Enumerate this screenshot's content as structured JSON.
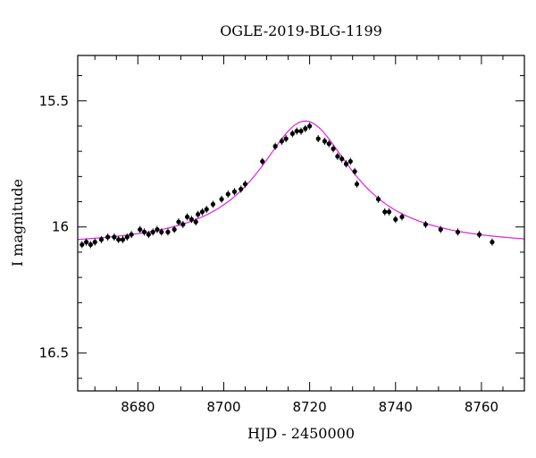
{
  "chart_data": {
    "type": "scatter",
    "title": "OGLE-2019-BLG-1199",
    "xlabel": "HJD - 2450000",
    "ylabel": "I magnitude",
    "xlim": [
      8666,
      8770
    ],
    "ylim": [
      16.65,
      15.32
    ],
    "y_inverted": true,
    "grid": false,
    "x_major_ticks": [
      8680,
      8700,
      8720,
      8740,
      8760
    ],
    "x_tick_labels": [
      "8680",
      "8700",
      "8720",
      "8740",
      "8760"
    ],
    "x_minor_step": 5,
    "y_major_ticks": [
      15.5,
      16,
      16.5
    ],
    "y_tick_labels": [
      "15.5",
      "16",
      "16.5"
    ],
    "y_minor_step": 0.1,
    "colors": {
      "points": "#000000",
      "model": "#e020e0"
    },
    "model": {
      "name": "",
      "base_mag": 16.08,
      "peak_mag": 15.58,
      "t0": 8719.0,
      "tE": 13.5
    },
    "series": [
      {
        "name": "",
        "x": [
          8667.0,
          8668.0,
          8669.0,
          8670.0,
          8671.5,
          8673.0,
          8674.5,
          8675.5,
          8676.5,
          8677.5,
          8678.5,
          8680.5,
          8681.5,
          8682.5,
          8683.5,
          8684.5,
          8685.5,
          8687.0,
          8688.5,
          8689.5,
          8690.5,
          8691.5,
          8692.5,
          8693.5,
          8694.0,
          8695.0,
          8696.0,
          8697.5,
          8699.5,
          8701.0,
          8702.5,
          8704.0,
          8705.0,
          8709.0,
          8712.0,
          8713.5,
          8714.5,
          8716.0,
          8717.0,
          8718.0,
          8719.0,
          8720.0,
          8722.0,
          8723.5,
          8724.5,
          8725.5,
          8726.5,
          8727.5,
          8728.5,
          8729.5,
          8730.5,
          8731.0,
          8736.0,
          8737.5,
          8738.5,
          8740.0,
          8741.5,
          8747.0,
          8750.5,
          8754.5,
          8759.5,
          8762.5
        ],
        "y": [
          16.07,
          16.06,
          16.07,
          16.06,
          16.05,
          16.04,
          16.04,
          16.05,
          16.05,
          16.04,
          16.03,
          16.01,
          16.02,
          16.03,
          16.02,
          16.01,
          16.02,
          16.02,
          16.01,
          15.98,
          15.99,
          15.96,
          15.97,
          15.98,
          15.95,
          15.94,
          15.93,
          15.91,
          15.89,
          15.87,
          15.86,
          15.85,
          15.83,
          15.74,
          15.68,
          15.66,
          15.65,
          15.63,
          15.62,
          15.62,
          15.61,
          15.6,
          15.65,
          15.66,
          15.67,
          15.69,
          15.72,
          15.73,
          15.75,
          15.74,
          15.78,
          15.83,
          15.89,
          15.94,
          15.94,
          15.97,
          15.96,
          15.99,
          16.01,
          16.02,
          16.03,
          16.06
        ]
      }
    ]
  }
}
